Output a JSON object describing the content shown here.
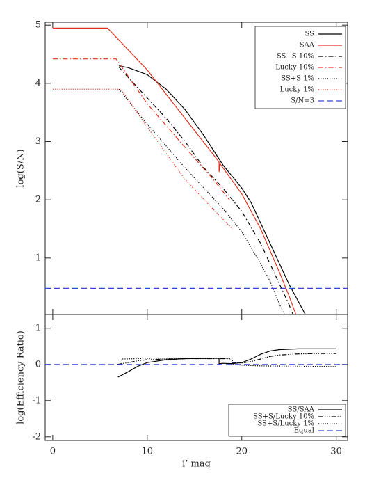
{
  "chart_data": [
    {
      "type": "line",
      "ylabel": "log(S/N)",
      "xlim": [
        -0.8,
        31.2
      ],
      "ylim": [
        0.03,
        5.05
      ],
      "xticks": [
        0,
        10,
        20,
        30
      ],
      "yticks": [
        1,
        2,
        3,
        4,
        5
      ],
      "legend": "upper right",
      "series": [
        {
          "name": "SS",
          "color": "#000000",
          "dash": "solid",
          "x": [
            7,
            8,
            10,
            12,
            14,
            16,
            18,
            20,
            21,
            22,
            23,
            24,
            25,
            26,
            27
          ],
          "values": [
            4.3,
            4.27,
            4.15,
            3.9,
            3.55,
            3.1,
            2.6,
            2.2,
            1.95,
            1.6,
            1.25,
            0.9,
            0.55,
            0.25,
            -0.05
          ]
        },
        {
          "name": "SAA",
          "color": "#e0301e",
          "dash": "solid",
          "x": [
            0,
            5.8,
            10,
            17.6,
            17.6,
            17.7,
            20,
            22,
            24,
            25,
            25.8
          ],
          "values": [
            4.95,
            4.95,
            4.23,
            2.65,
            2.48,
            2.62,
            2.1,
            1.5,
            0.75,
            0.35,
            0
          ]
        },
        {
          "name": "SS+S 10%",
          "color": "#000000",
          "dash": "dashdot",
          "x": [
            7,
            8,
            10,
            12,
            14,
            16,
            18,
            20,
            22,
            24,
            25,
            25.5
          ],
          "values": [
            4.28,
            4.1,
            3.75,
            3.4,
            3.0,
            2.55,
            2.2,
            1.8,
            1.25,
            0.55,
            0.2,
            0
          ]
        },
        {
          "name": "Lucky 10%",
          "color": "#e0301e",
          "dash": "dashdot",
          "x": [
            0,
            6.7,
            10,
            14,
            17,
            18.7
          ],
          "values": [
            4.42,
            4.42,
            3.65,
            2.9,
            2.35,
            2.0
          ]
        },
        {
          "name": "SS+S 1%",
          "color": "#000000",
          "dash": "dotted",
          "x": [
            7,
            10,
            14,
            18,
            20,
            22,
            23,
            24,
            24.6
          ],
          "values": [
            3.9,
            3.3,
            2.55,
            1.85,
            1.45,
            0.9,
            0.6,
            0.2,
            0
          ]
        },
        {
          "name": "Lucky 1%",
          "color": "#e0301e",
          "dash": "dotted",
          "x": [
            0,
            7.2,
            10,
            14,
            17.5,
            19
          ],
          "values": [
            3.9,
            3.9,
            3.25,
            2.35,
            1.75,
            1.5
          ]
        },
        {
          "name": "S/N=3",
          "color": "#3344dd",
          "dash": "dashed",
          "x": [
            -0.8,
            31.2
          ],
          "values": [
            0.48,
            0.48
          ]
        }
      ]
    },
    {
      "type": "line",
      "ylabel": "log(Efficiency Ratio)",
      "xlabel": "i’ mag",
      "xlim": [
        -0.8,
        31.2
      ],
      "ylim": [
        -2.1,
        1.38
      ],
      "xticks": [
        0,
        10,
        20,
        30
      ],
      "yticks": [
        -2,
        -1,
        0,
        1
      ],
      "legend": "lower right",
      "series": [
        {
          "name": "SS/SAA",
          "color": "#000000",
          "dash": "solid",
          "x": [
            6.9,
            8,
            9,
            10,
            12,
            14,
            17.6,
            17.6,
            18,
            19,
            20,
            21,
            22,
            23,
            24,
            26,
            30
          ],
          "values": [
            -0.35,
            -0.2,
            -0.05,
            0.05,
            0.13,
            0.16,
            0.17,
            0.02,
            0.03,
            0.02,
            0.05,
            0.15,
            0.28,
            0.37,
            0.41,
            0.43,
            0.43
          ]
        },
        {
          "name": "SS+S/Lucky 10%",
          "color": "#000000",
          "dash": "dash3dot",
          "x": [
            6.8,
            8,
            9,
            10,
            12,
            14,
            17.6,
            18.7,
            19,
            20,
            21,
            22,
            23,
            24,
            26,
            28,
            30
          ],
          "values": [
            0,
            0.05,
            0.1,
            0.13,
            0.15,
            0.16,
            0.16,
            0.16,
            0.05,
            0.04,
            0.08,
            0.15,
            0.22,
            0.26,
            0.29,
            0.3,
            0.3
          ]
        },
        {
          "name": "SS+S/Lucky 1%",
          "color": "#000000",
          "dash": "dotted",
          "x": [
            7.2,
            7.3,
            9,
            12,
            18,
            19,
            19,
            20,
            22,
            26,
            30
          ],
          "values": [
            0.05,
            0.15,
            0.16,
            0.17,
            0.17,
            0.15,
            0,
            -0.02,
            -0.04,
            -0.05,
            -0.06
          ]
        },
        {
          "name": "Equal",
          "color": "#3344dd",
          "dash": "dashed",
          "x": [
            -0.8,
            31.2
          ],
          "values": [
            0,
            0
          ]
        }
      ]
    }
  ]
}
